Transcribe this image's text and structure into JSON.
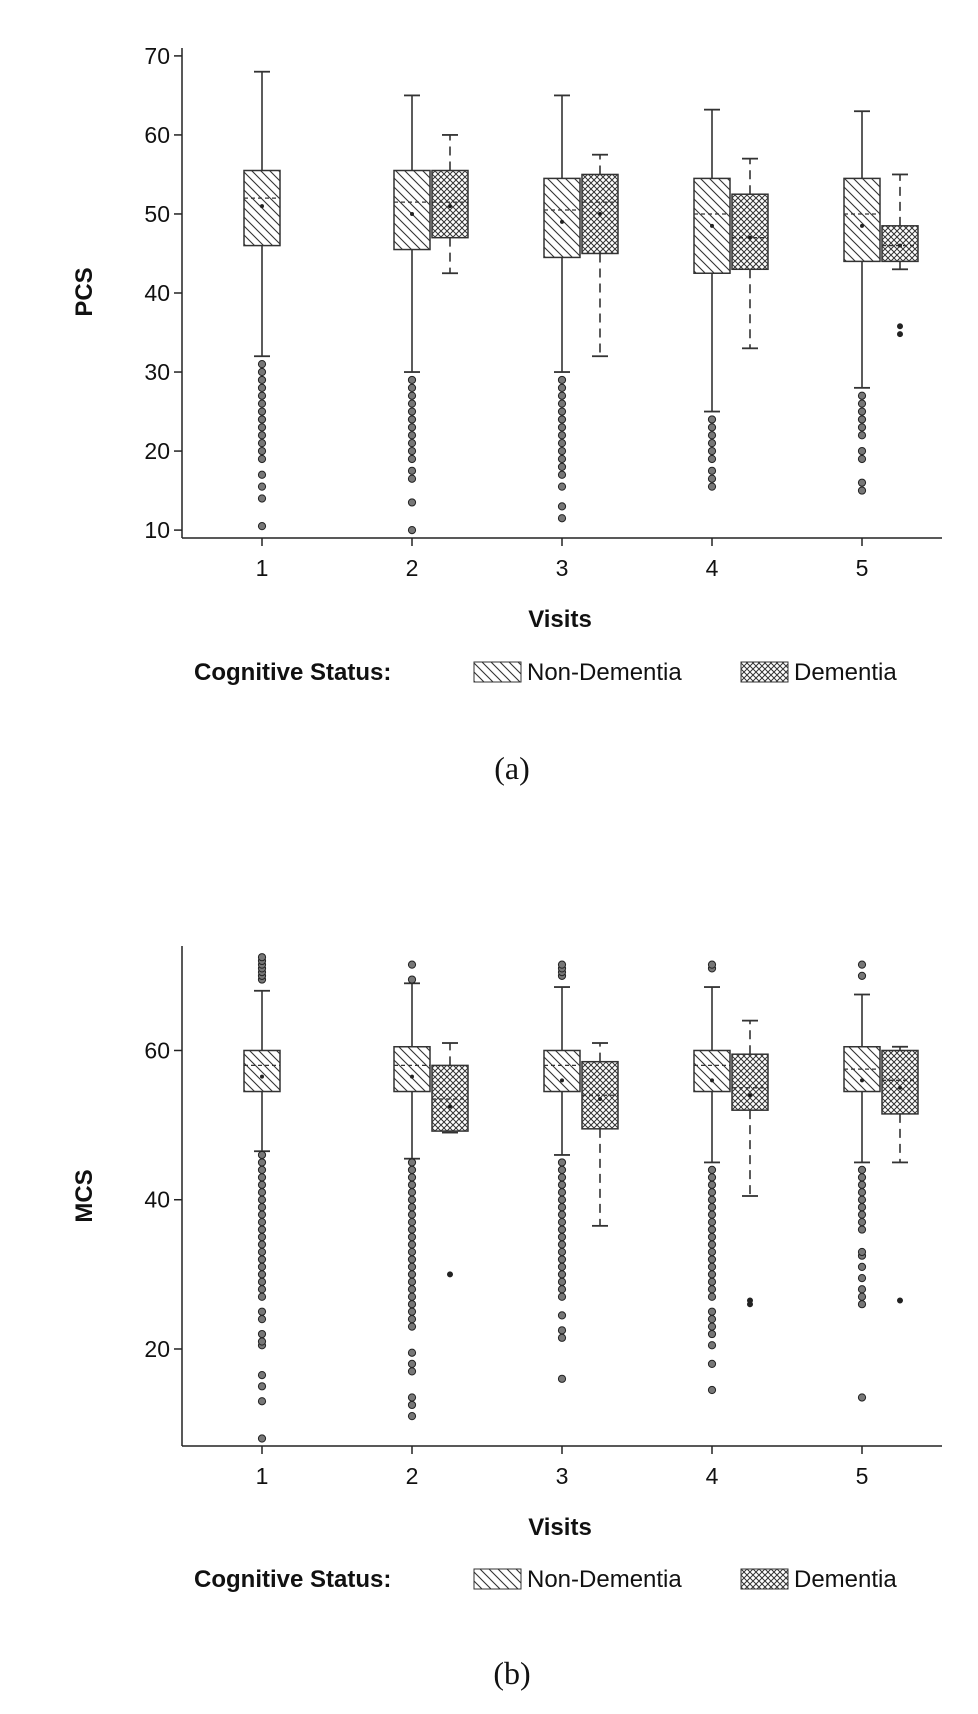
{
  "chart_data": [
    {
      "type": "box",
      "ylabel": "PCS",
      "xlabel": "Visits",
      "ylim": [
        9,
        71
      ],
      "yticks": [
        10,
        20,
        30,
        40,
        50,
        60,
        70
      ],
      "categories": [
        "1",
        "2",
        "3",
        "4",
        "5"
      ],
      "legend_title": "Cognitive Status:",
      "caption": "(a)",
      "series": [
        {
          "name": "Non-Dementia",
          "boxes": [
            {
              "whislo": 32,
              "q1": 46,
              "med": 52,
              "q3": 55.5,
              "whishi": 68,
              "mean": 51,
              "outliers": [
                10.5,
                14,
                15.5,
                17,
                19,
                20,
                21,
                22,
                23,
                24,
                25,
                26,
                27,
                28,
                29,
                30,
                31
              ]
            },
            {
              "whislo": 30,
              "q1": 45.5,
              "med": 51.5,
              "q3": 55.5,
              "whishi": 65,
              "mean": 50,
              "outliers": [
                10,
                13.5,
                16.5,
                17.5,
                19,
                20,
                21,
                22,
                23,
                24,
                25,
                26,
                27,
                28,
                29
              ]
            },
            {
              "whislo": 30,
              "q1": 44.5,
              "med": 50.5,
              "q3": 54.5,
              "whishi": 65,
              "mean": 49,
              "outliers": [
                11.5,
                13,
                15.5,
                17,
                18,
                19,
                20,
                21,
                22,
                23,
                24,
                25,
                26,
                27,
                28,
                29
              ]
            },
            {
              "whislo": 25,
              "q1": 42.5,
              "med": 50,
              "q3": 54.5,
              "whishi": 63.2,
              "mean": 48.5,
              "outliers": [
                15.5,
                16.5,
                17.5,
                19,
                20,
                21,
                22,
                23,
                24
              ]
            },
            {
              "whislo": 28,
              "q1": 44,
              "med": 50,
              "q3": 54.5,
              "whishi": 63,
              "mean": 48.5,
              "outliers": [
                15,
                16,
                19,
                20,
                22,
                23,
                24,
                25,
                26,
                27
              ]
            }
          ]
        },
        {
          "name": "Dementia",
          "boxes": [
            null,
            {
              "whislo": 42.5,
              "q1": 47,
              "med": 51.5,
              "q3": 55.5,
              "whishi": 60,
              "mean": 51,
              "outliers": []
            },
            {
              "whislo": 32,
              "q1": 45,
              "med": 51.5,
              "q3": 55,
              "whishi": 57.5,
              "mean": 50,
              "outliers": []
            },
            {
              "whislo": 33,
              "q1": 43,
              "med": 47,
              "q3": 52.5,
              "whishi": 57,
              "mean": 47,
              "outliers": []
            },
            {
              "whislo": 43,
              "q1": 44,
              "med": 46,
              "q3": 48.5,
              "whishi": 55,
              "mean": 46,
              "outliers": [
                34.8,
                35.8
              ]
            }
          ]
        }
      ]
    },
    {
      "type": "box",
      "ylabel": "MCS",
      "xlabel": "Visits",
      "ylim": [
        7,
        74
      ],
      "yticks": [
        20,
        40,
        60
      ],
      "categories": [
        "1",
        "2",
        "3",
        "4",
        "5"
      ],
      "legend_title": "Cognitive Status:",
      "caption": "(b)",
      "series": [
        {
          "name": "Non-Dementia",
          "boxes": [
            {
              "whislo": 46.5,
              "q1": 54.5,
              "med": 58,
              "q3": 60,
              "whishi": 68,
              "mean": 56.5,
              "outliers": [
                8,
                13,
                15,
                16.5,
                20.5,
                21,
                22,
                24,
                25,
                27,
                28,
                29,
                30,
                31,
                32,
                33,
                34,
                35,
                36,
                37,
                38,
                39,
                40,
                41,
                42,
                43,
                44,
                45,
                46,
                69.5,
                70,
                70.5,
                71,
                71.5,
                72,
                72.5
              ]
            },
            {
              "whislo": 45.5,
              "q1": 54.5,
              "med": 58,
              "q3": 60.5,
              "whishi": 69,
              "mean": 56.5,
              "outliers": [
                11,
                12.5,
                13.5,
                17,
                18,
                19.5,
                23,
                24,
                25,
                26,
                27,
                28,
                29,
                30,
                31,
                32,
                33,
                34,
                35,
                36,
                37,
                38,
                39,
                40,
                41,
                42,
                43,
                44,
                45,
                69.5,
                71.5
              ]
            },
            {
              "whislo": 46,
              "q1": 54.5,
              "med": 58,
              "q3": 60,
              "whishi": 68.5,
              "mean": 56,
              "outliers": [
                16,
                21.5,
                22.5,
                24.5,
                27,
                28,
                29,
                30,
                31,
                32,
                33,
                34,
                35,
                36,
                37,
                38,
                39,
                40,
                41,
                42,
                43,
                44,
                45,
                70,
                70.5,
                71,
                71.5
              ]
            },
            {
              "whislo": 45,
              "q1": 54.5,
              "med": 58,
              "q3": 60,
              "whishi": 68.5,
              "mean": 56,
              "outliers": [
                14.5,
                18,
                20.5,
                22,
                23,
                24,
                25,
                27,
                28,
                29,
                30,
                31,
                32,
                33,
                34,
                35,
                36,
                37,
                38,
                39,
                40,
                41,
                42,
                43,
                44,
                71,
                71.5
              ]
            },
            {
              "whislo": 45,
              "q1": 54.5,
              "med": 57.5,
              "q3": 60.5,
              "whishi": 67.5,
              "mean": 56,
              "outliers": [
                13.5,
                26,
                27,
                28,
                29.5,
                31,
                32.5,
                33,
                36,
                37,
                38,
                39,
                40,
                41,
                42,
                43,
                44,
                70,
                71.5
              ]
            }
          ]
        },
        {
          "name": "Dementia",
          "boxes": [
            null,
            {
              "whislo": 49,
              "q1": 49.2,
              "med": 53.5,
              "q3": 58,
              "whishi": 61,
              "mean": 52.5,
              "outliers": [
                30
              ]
            },
            {
              "whislo": 36.5,
              "q1": 49.5,
              "med": 54,
              "q3": 58.5,
              "whishi": 61,
              "mean": 53.5,
              "outliers": []
            },
            {
              "whislo": 40.5,
              "q1": 52,
              "med": 55,
              "q3": 59.5,
              "whishi": 64,
              "mean": 54,
              "outliers": [
                26,
                26.5
              ]
            },
            {
              "whislo": 45,
              "q1": 51.5,
              "med": 56,
              "q3": 60,
              "whishi": 60.5,
              "mean": 55,
              "outliers": [
                26.5
              ]
            }
          ]
        }
      ]
    }
  ]
}
